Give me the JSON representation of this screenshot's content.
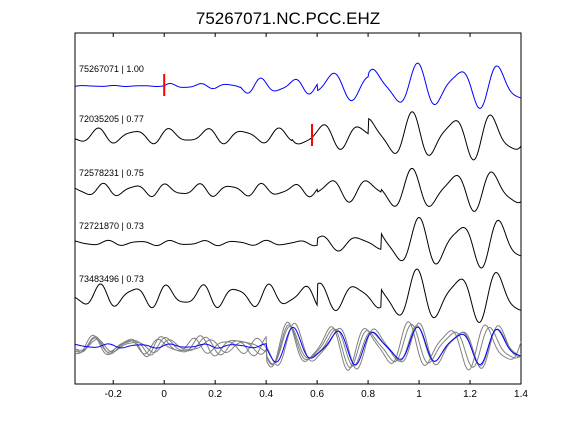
{
  "figure": {
    "title": "75267071.NC.PCC.EHZ"
  },
  "chart_data": {
    "type": "line",
    "title": "75267071.NC.PCC.EHZ",
    "xlabel": "",
    "ylabel": "",
    "xlim": [
      -0.35,
      1.4
    ],
    "x_ticks": [
      -0.2,
      0,
      0.2,
      0.4,
      0.6,
      0.8,
      1,
      1.2,
      1.4
    ],
    "x_tick_labels": [
      "-0.2",
      "0",
      "0.2",
      "0.4",
      "0.6",
      "0.8",
      "1",
      "1.2",
      "1.4"
    ],
    "grid": false,
    "colors": {
      "reference": "#0000ff",
      "trace": "#000000",
      "stack_trace": "#808080",
      "pick": "#ff0000",
      "axes": "#000000"
    },
    "traces": [
      {
        "label": "75267071 | 1.00",
        "color": "#0000ff",
        "pick_time": 0.0,
        "segments": [
          {
            "t0": -0.35,
            "t1": 0.0,
            "amp": 0.02,
            "f": 9.0,
            "ph": 0.3
          },
          {
            "t0": 0.0,
            "t1": 0.3,
            "amp": 0.1,
            "f": 9.0,
            "ph": 0.0
          },
          {
            "t0": 0.3,
            "t1": 0.6,
            "amp": 0.3,
            "f": 8.0,
            "ph": 1.2
          },
          {
            "t0": 0.6,
            "t1": 0.8,
            "amp": 0.55,
            "f": 6.0,
            "ph": 2.0
          },
          {
            "t0": 0.8,
            "t1": 1.4,
            "amp": 0.85,
            "f": 6.2,
            "ph": 0.6
          }
        ]
      },
      {
        "label": "72035205 | 0.77",
        "color": "#000000",
        "pick_time": 0.58,
        "segments": [
          {
            "t0": -0.35,
            "t1": 0.5,
            "amp": 0.3,
            "f": 7.0,
            "ph": 0.5
          },
          {
            "t0": 0.5,
            "t1": 0.8,
            "amp": 0.5,
            "f": 6.5,
            "ph": 1.5
          },
          {
            "t0": 0.8,
            "t1": 1.4,
            "amp": 0.9,
            "f": 6.3,
            "ph": 0.8
          }
        ]
      },
      {
        "label": "72578231 | 0.75",
        "color": "#000000",
        "pick_time": null,
        "segments": [
          {
            "t0": -0.35,
            "t1": 0.6,
            "amp": 0.25,
            "f": 8.0,
            "ph": 1.1
          },
          {
            "t0": 0.6,
            "t1": 0.85,
            "amp": 0.45,
            "f": 6.5,
            "ph": 0.2
          },
          {
            "t0": 0.85,
            "t1": 1.4,
            "amp": 0.8,
            "f": 6.2,
            "ph": 1.4
          }
        ]
      },
      {
        "label": "72721870 | 0.73",
        "color": "#000000",
        "pick_time": null,
        "segments": [
          {
            "t0": -0.35,
            "t1": 0.6,
            "amp": 0.1,
            "f": 8.0,
            "ph": 0.2
          },
          {
            "t0": 0.6,
            "t1": 0.85,
            "amp": 0.3,
            "f": 6.5,
            "ph": 1.8
          },
          {
            "t0": 0.85,
            "t1": 1.4,
            "amp": 0.95,
            "f": 6.2,
            "ph": 0.4
          }
        ]
      },
      {
        "label": "73483496 | 0.73",
        "color": "#000000",
        "pick_time": null,
        "segments": [
          {
            "t0": -0.35,
            "t1": 0.6,
            "amp": 0.45,
            "f": 7.5,
            "ph": 0.9
          },
          {
            "t0": 0.6,
            "t1": 0.85,
            "amp": 0.55,
            "f": 6.5,
            "ph": 2.2
          },
          {
            "t0": 0.85,
            "t1": 1.4,
            "amp": 1.0,
            "f": 6.2,
            "ph": 0.7
          }
        ]
      }
    ],
    "stack": {
      "label": "",
      "members": [
        {
          "color": "#0000ff",
          "segments": [
            {
              "t0": -0.35,
              "t1": 0.4,
              "amp": 0.08,
              "f": 8.0,
              "ph": 0.2
            },
            {
              "t0": 0.4,
              "t1": 1.4,
              "amp": 0.7,
              "f": 6.2,
              "ph": 0.6
            }
          ]
        },
        {
          "color": "#808080",
          "segments": [
            {
              "t0": -0.35,
              "t1": 0.4,
              "amp": 0.35,
              "f": 7.0,
              "ph": 1.0
            },
            {
              "t0": 0.4,
              "t1": 1.4,
              "amp": 0.8,
              "f": 6.3,
              "ph": 0.9
            }
          ]
        },
        {
          "color": "#808080",
          "segments": [
            {
              "t0": -0.35,
              "t1": 0.4,
              "amp": 0.3,
              "f": 7.8,
              "ph": 2.3
            },
            {
              "t0": 0.4,
              "t1": 1.4,
              "amp": 0.75,
              "f": 6.1,
              "ph": 1.3
            }
          ]
        },
        {
          "color": "#808080",
          "segments": [
            {
              "t0": -0.35,
              "t1": 0.4,
              "amp": 0.25,
              "f": 6.8,
              "ph": 0.4
            },
            {
              "t0": 0.4,
              "t1": 1.4,
              "amp": 0.85,
              "f": 6.2,
              "ph": 0.4
            }
          ]
        },
        {
          "color": "#808080",
          "segments": [
            {
              "t0": -0.35,
              "t1": 0.4,
              "amp": 0.4,
              "f": 7.2,
              "ph": 1.7
            },
            {
              "t0": 0.4,
              "t1": 1.4,
              "amp": 0.9,
              "f": 6.4,
              "ph": 0.8
            }
          ]
        }
      ]
    }
  }
}
